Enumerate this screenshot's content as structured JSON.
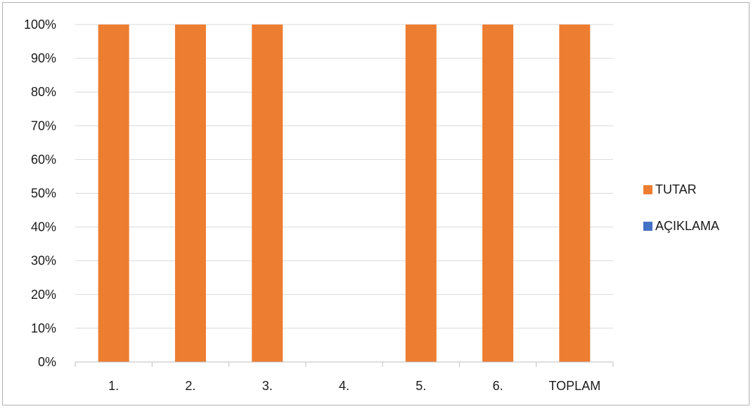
{
  "chart_data": {
    "type": "bar",
    "stacked": "percent",
    "categories": [
      "1.",
      "2.",
      "3.",
      "4.",
      "5.",
      "6.",
      "TOPLAM"
    ],
    "series": [
      {
        "name": "TUTAR",
        "color": "#ED7D31",
        "values": [
          100,
          100,
          100,
          0,
          100,
          100,
          100
        ]
      },
      {
        "name": "AÇIKLAMA",
        "color": "#4472C4",
        "values": [
          0,
          0,
          0,
          0,
          0,
          0,
          0
        ]
      }
    ],
    "ylim": [
      0,
      100
    ],
    "yticks": [
      "0%",
      "10%",
      "20%",
      "30%",
      "40%",
      "50%",
      "60%",
      "70%",
      "80%",
      "90%",
      "100%"
    ],
    "grid": true,
    "legend_position": "right",
    "title": "",
    "xlabel": "",
    "ylabel": ""
  }
}
